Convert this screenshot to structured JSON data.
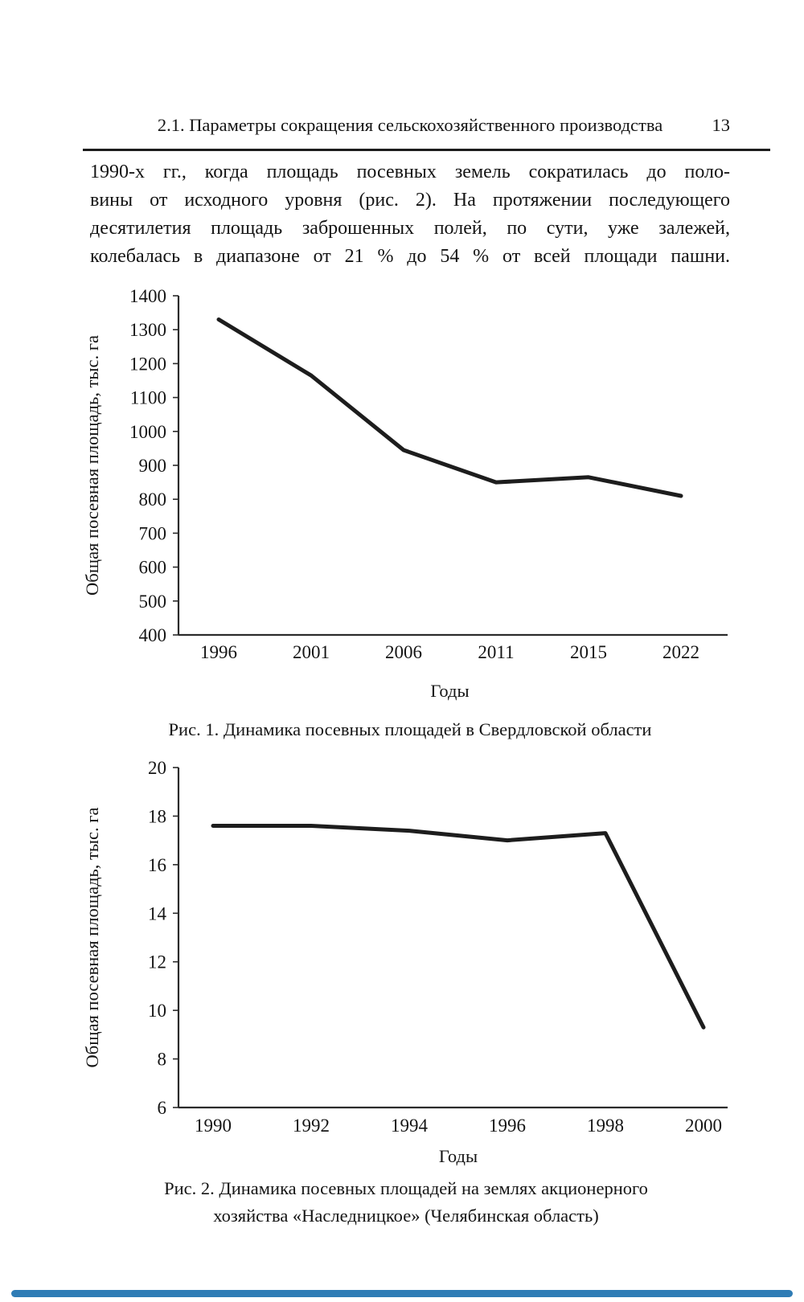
{
  "header": {
    "title": "2.1. Параметры сокращения сельскохозяйственного производства",
    "page_number": "13"
  },
  "paragraph": {
    "lines": [
      "1990-х гг., когда площадь посевных земель сократилась до поло-",
      "вины от исходного уровня (рис. 2). На протяжении последующего",
      "десятилетия площадь заброшенных полей, по сути, уже залежей,",
      "колебалась в диапазоне от 21 % до 54 % от всей площади пашни."
    ]
  },
  "chart_data": [
    {
      "type": "line",
      "title": "Рис. 1. Динамика посевных площадей в Свердловской области",
      "categories": [
        "1996",
        "2001",
        "2006",
        "2011",
        "2015",
        "2022"
      ],
      "values": [
        1330,
        1165,
        945,
        850,
        865,
        810
      ],
      "xlabel": "Годы",
      "ylabel": "Общая посевная площадь, тыс. га",
      "ylim": [
        400,
        1400
      ],
      "ytick_step": 100,
      "grid": false,
      "legend": "none",
      "line_color": "#1d1d1d"
    },
    {
      "type": "line",
      "title": "Рис. 2. Динамика посевных площадей на землях акционерного хозяйства «Наследницкое» (Челябинская область)",
      "categories": [
        "1990",
        "1992",
        "1994",
        "1996",
        "1998",
        "2000"
      ],
      "values": [
        17.6,
        17.6,
        17.4,
        17.0,
        17.3,
        9.3
      ],
      "xlabel": "Годы",
      "ylabel": "Общая посевная площадь, тыс. га",
      "ylim": [
        6,
        20
      ],
      "ytick_step": 2,
      "grid": false,
      "legend": "none",
      "line_color": "#1d1d1d"
    }
  ],
  "footer": {
    "accent_color": "#2f7cb5"
  }
}
